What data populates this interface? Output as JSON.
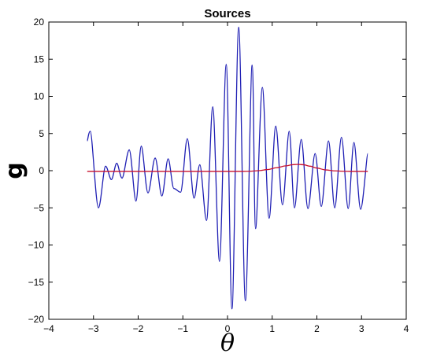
{
  "chart_data": {
    "type": "line",
    "title": "Sources",
    "xlabel": "θ",
    "ylabel": "g",
    "xlim": [
      -4,
      4
    ],
    "ylim": [
      -20,
      20
    ],
    "xticks": [
      -4,
      -3,
      -2,
      -1,
      0,
      1,
      2,
      3,
      4
    ],
    "yticks": [
      -20,
      -15,
      -10,
      -5,
      0,
      5,
      10,
      15,
      20
    ],
    "xtick_labels": [
      "−4",
      "−3",
      "−2",
      "−1",
      "0",
      "1",
      "2",
      "3",
      "4"
    ],
    "ytick_labels": [
      "−20",
      "−15",
      "−10",
      "−5",
      "0",
      "5",
      "10",
      "15",
      "20"
    ],
    "grid": false,
    "series": [
      {
        "color": "#1f1fb4",
        "x": [
          -3.14,
          -3.07,
          -2.89,
          -2.73,
          -2.6,
          -2.48,
          -2.36,
          -2.2,
          -2.05,
          -1.93,
          -1.78,
          -1.62,
          -1.47,
          -1.33,
          -1.2,
          -1.05,
          -0.9,
          -0.75,
          -0.62,
          -0.47,
          -0.33,
          -0.18,
          -0.03,
          0.1,
          0.25,
          0.4,
          0.55,
          0.63,
          0.78,
          0.93,
          1.08,
          1.23,
          1.38,
          1.5,
          1.65,
          1.8,
          1.96,
          2.1,
          2.26,
          2.4,
          2.55,
          2.7,
          2.83,
          2.98,
          3.14
        ],
        "y": [
          4.0,
          5.3,
          -5.0,
          0.6,
          -1.2,
          1.0,
          -1.0,
          2.8,
          -4.1,
          3.3,
          -3.0,
          1.7,
          -3.4,
          1.6,
          -2.4,
          -2.9,
          4.3,
          -3.7,
          0.8,
          -6.7,
          8.6,
          -12.2,
          14.3,
          -18.6,
          19.3,
          -17.5,
          14.2,
          -7.8,
          11.2,
          -6.4,
          6.0,
          -4.6,
          5.3,
          -5.0,
          4.2,
          -5.1,
          2.3,
          -4.8,
          4.0,
          -5.0,
          4.5,
          -5.1,
          3.8,
          -5.2,
          2.3
        ],
        "smooth": true
      },
      {
        "color": "#c8102e",
        "x": [
          -3.14,
          -2.5,
          -2.0,
          -1.5,
          -1.0,
          -0.5,
          0.0,
          0.3,
          0.5,
          0.7,
          0.9,
          1.1,
          1.3,
          1.45,
          1.57,
          1.7,
          1.85,
          2.0,
          2.2,
          2.4,
          2.6,
          2.8,
          3.14
        ],
        "y": [
          -0.1,
          -0.1,
          -0.1,
          -0.1,
          -0.1,
          -0.1,
          -0.1,
          -0.1,
          -0.08,
          0.0,
          0.15,
          0.4,
          0.65,
          0.8,
          0.85,
          0.8,
          0.6,
          0.35,
          0.1,
          -0.03,
          -0.08,
          -0.1,
          -0.1
        ],
        "smooth": true
      }
    ]
  }
}
